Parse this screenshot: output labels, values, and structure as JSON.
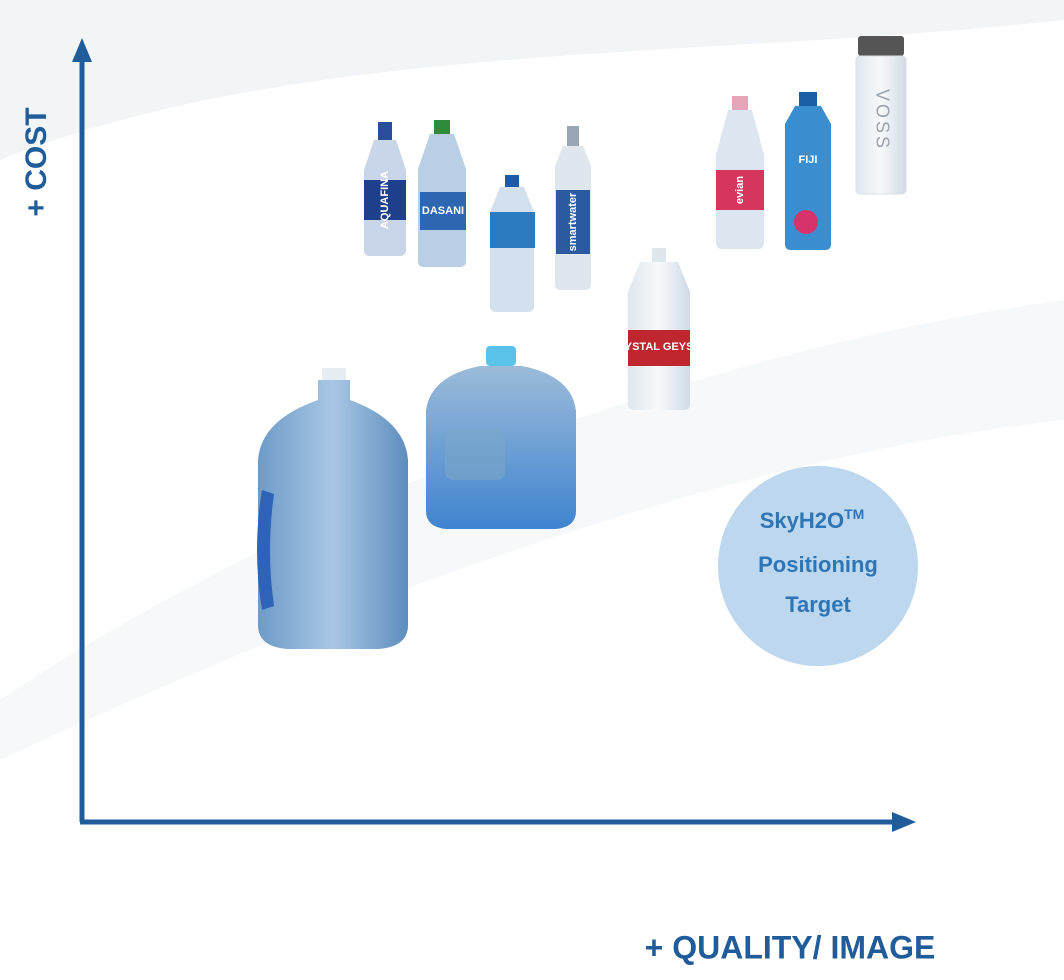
{
  "axes": {
    "y_label": "+ COST",
    "x_label": "+ QUALITY/ IMAGE"
  },
  "products": [
    {
      "label": "AQUAFINA"
    },
    {
      "label": "DASANI"
    },
    {
      "label": "smartwater"
    },
    {
      "label": "CRYSTAL GEYSER"
    },
    {
      "label": "evian"
    },
    {
      "label": "FIJI"
    },
    {
      "label": "VOSS"
    }
  ],
  "target": {
    "name": "SkyH2O",
    "mark": "TM",
    "lines": [
      "Positioning",
      "Target"
    ]
  }
}
